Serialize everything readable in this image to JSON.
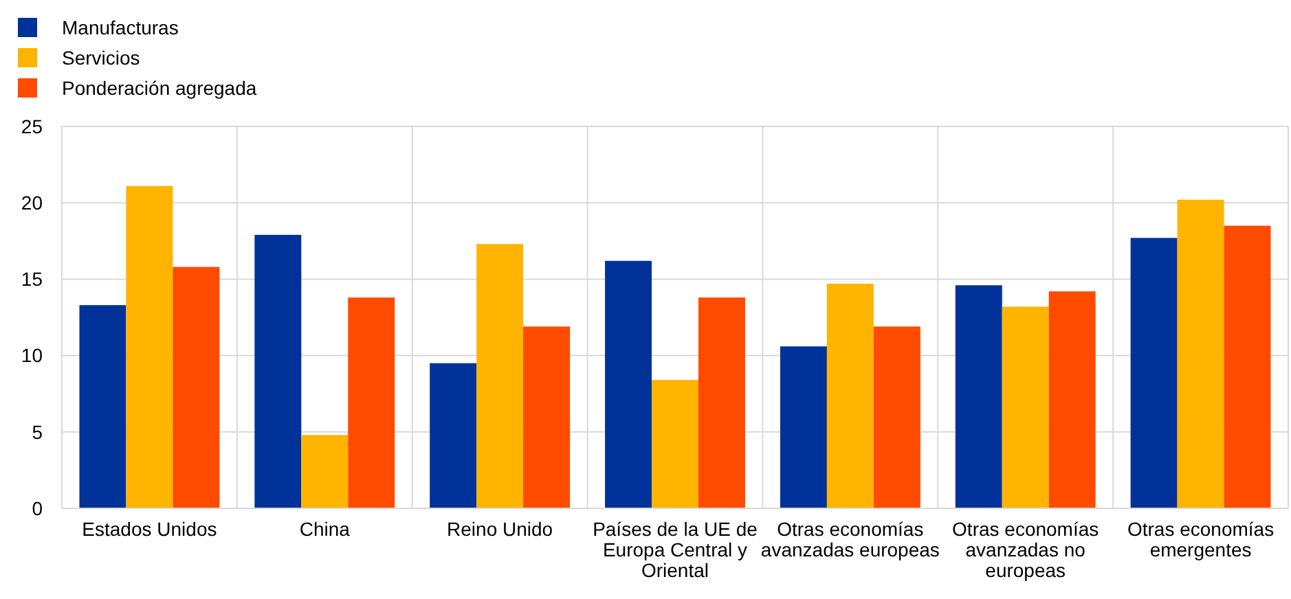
{
  "chart_data": {
    "type": "bar",
    "categories": [
      "Estados Unidos",
      "China",
      "Reino Unido",
      "Países de la UE de Europa Central y Oriental",
      "Otras economías avanzadas europeas",
      "Otras economías avanzadas no europeas",
      "Otras economías emergentes"
    ],
    "series": [
      {
        "name": "Manufacturas",
        "color": "#003299",
        "values": [
          13.3,
          17.9,
          9.5,
          16.2,
          10.6,
          14.6,
          17.7
        ]
      },
      {
        "name": "Servicios",
        "color": "#ffb400",
        "values": [
          21.1,
          4.8,
          17.3,
          8.4,
          14.7,
          13.2,
          20.2
        ]
      },
      {
        "name": "Ponderación agregada",
        "color": "#ff4b00",
        "values": [
          15.8,
          13.8,
          11.9,
          13.8,
          11.9,
          14.2,
          18.5
        ]
      }
    ],
    "ylim": [
      0,
      25
    ],
    "yticks": [
      0,
      5,
      10,
      15,
      20,
      25
    ],
    "grid": true,
    "legend": "top left"
  }
}
